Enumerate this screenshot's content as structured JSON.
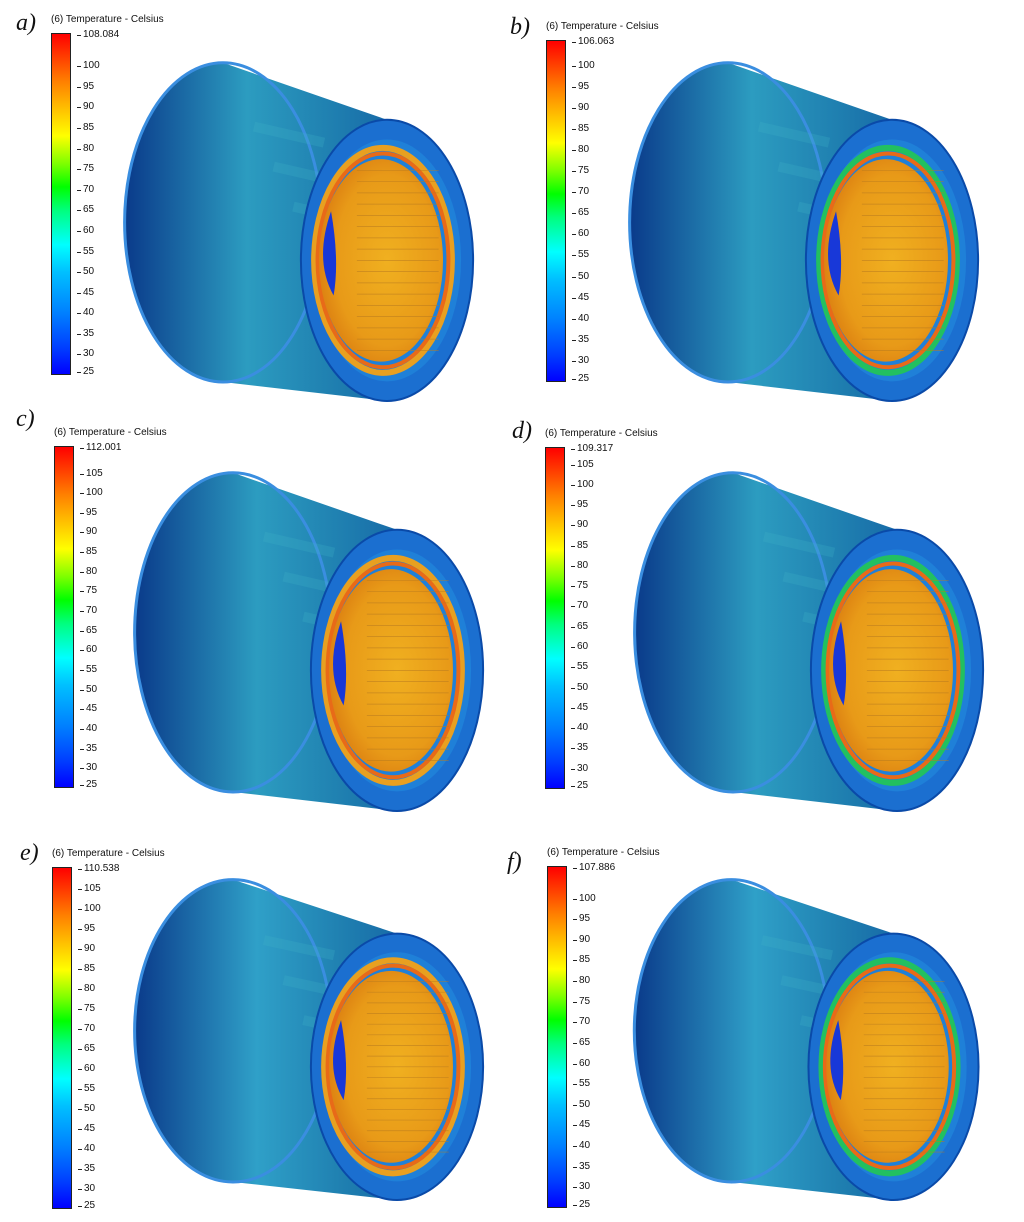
{
  "legend_title": "(6) Temperature - Celsius",
  "colormap": [
    "#0000ff",
    "#0080ff",
    "#00ffff",
    "#00ff00",
    "#ffff00",
    "#ff8000",
    "#ff0000"
  ],
  "panels": [
    {
      "letter": "a)",
      "max_label": "108.084",
      "ticks": [
        "100",
        "95",
        "90",
        "85",
        "80",
        "75",
        "70",
        "65",
        "60",
        "55",
        "50",
        "45",
        "40",
        "35",
        "30",
        "25"
      ]
    },
    {
      "letter": "b)",
      "max_label": "106.063",
      "ticks": [
        "100",
        "95",
        "90",
        "85",
        "80",
        "75",
        "70",
        "65",
        "60",
        "55",
        "50",
        "45",
        "40",
        "35",
        "30",
        "25"
      ]
    },
    {
      "letter": "c)",
      "max_label": "112.001",
      "ticks": [
        "105",
        "100",
        "95",
        "90",
        "85",
        "80",
        "75",
        "70",
        "65",
        "60",
        "55",
        "50",
        "45",
        "40",
        "35",
        "30",
        "25"
      ]
    },
    {
      "letter": "d)",
      "max_label": "109.317",
      "ticks": [
        "105",
        "100",
        "95",
        "90",
        "85",
        "80",
        "75",
        "70",
        "65",
        "60",
        "55",
        "50",
        "45",
        "40",
        "35",
        "30",
        "25"
      ]
    },
    {
      "letter": "e)",
      "max_label": "110.538",
      "ticks": [
        "105",
        "100",
        "95",
        "90",
        "85",
        "80",
        "75",
        "70",
        "65",
        "60",
        "55",
        "50",
        "45",
        "40",
        "35",
        "30",
        "25"
      ]
    },
    {
      "letter": "f)",
      "max_label": "107.886",
      "ticks": [
        "100",
        "95",
        "90",
        "85",
        "80",
        "75",
        "70",
        "65",
        "60",
        "55",
        "50",
        "45",
        "40",
        "35",
        "30",
        "25"
      ]
    }
  ]
}
